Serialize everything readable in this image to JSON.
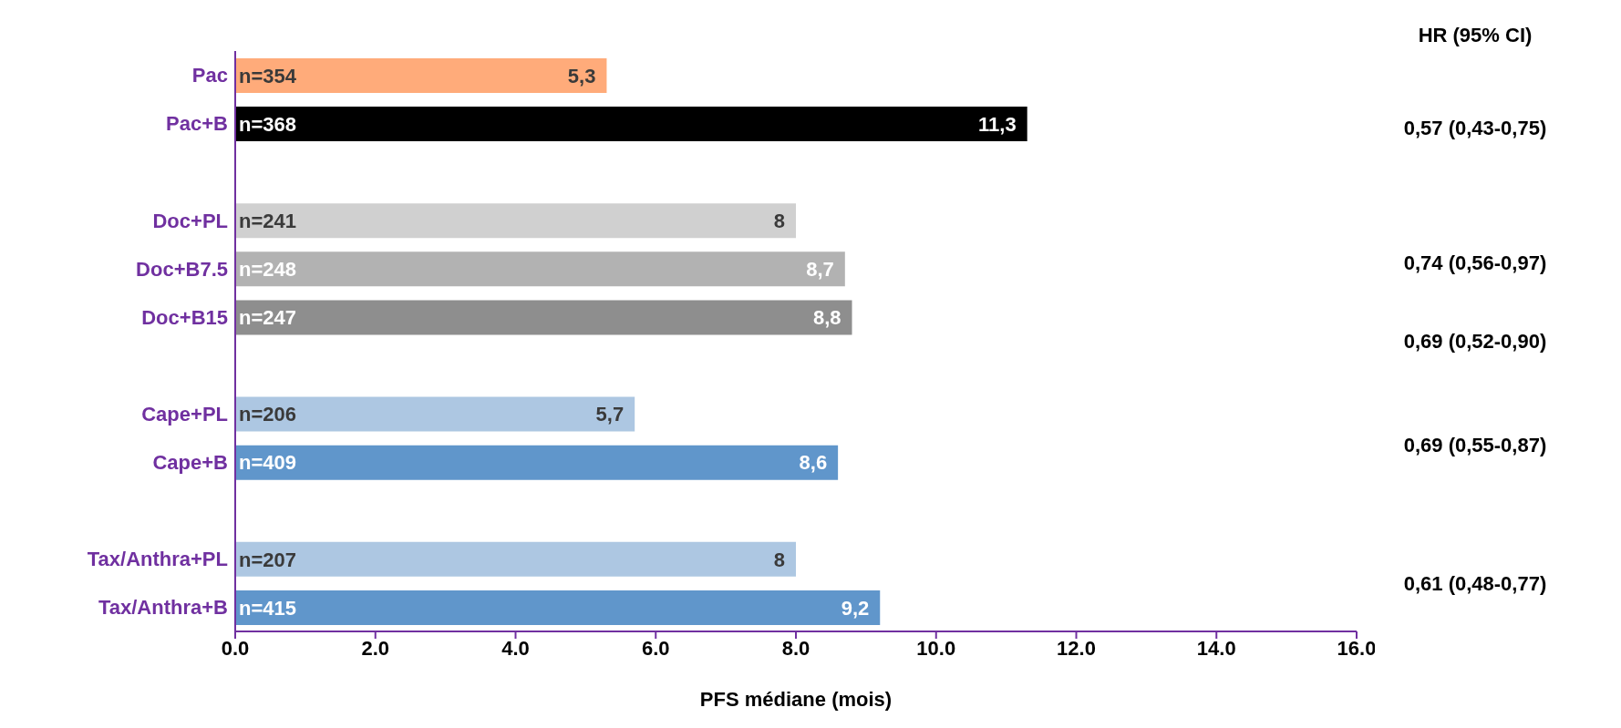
{
  "chart_data": {
    "type": "bar",
    "orientation": "horizontal",
    "xlabel": "PFS médiane (mois)",
    "categories": [
      "Pac",
      "Pac+B",
      null,
      "Doc+PL",
      "Doc+B7.5",
      "Doc+B15",
      null,
      "Cape+PL",
      "Cape+B",
      null,
      "Tax/Anthra+PL",
      "Tax/Anthra+B"
    ],
    "values": [
      5.3,
      11.3,
      null,
      8.0,
      8.7,
      8.8,
      null,
      5.7,
      8.6,
      null,
      8.0,
      9.2
    ],
    "value_labels": [
      "5,3",
      "11,3",
      null,
      "8",
      "8,7",
      "8,8",
      null,
      "5,7",
      "8,6",
      null,
      "8",
      "9,2"
    ],
    "colors": [
      "#ffab7a",
      "#000000",
      null,
      "#d0d0d0",
      "#b2b2b2",
      "#8e8e8e",
      null,
      "#adc7e2",
      "#6096cb",
      null,
      "#adc7e2",
      "#6096cb"
    ],
    "xlim": [
      0,
      16
    ],
    "xticks": [
      {
        "value": 0,
        "label": "0.0"
      },
      {
        "value": 2,
        "label": "2.0"
      },
      {
        "value": 4,
        "label": "4.0"
      },
      {
        "value": 6,
        "label": "6.0"
      },
      {
        "value": 8,
        "label": "8.0"
      },
      {
        "value": 10,
        "label": "10.0"
      },
      {
        "value": 12,
        "label": "12.0"
      },
      {
        "value": 14,
        "label": "14.0"
      },
      {
        "value": 16,
        "label": "16.0"
      }
    ],
    "annotations": [
      {
        "text": "n=354",
        "y": "Pac"
      },
      {
        "text": "n=368",
        "y": "Pac+B"
      },
      {
        "text": "n=241",
        "y": "Doc+PL"
      },
      {
        "text": "n=248",
        "y": "Doc+B7.5"
      },
      {
        "text": "n=247",
        "y": "Doc+B15"
      },
      {
        "text": "n=206",
        "y": "Cape+PL"
      },
      {
        "text": "n=409",
        "y": "Cape+B"
      },
      {
        "text": "n=207",
        "y": "Tax/Anthra+PL"
      },
      {
        "text": "n=415",
        "y": "Tax/Anthra+B"
      },
      "HR (95% CI)",
      "0,57 (0,43-0,75)",
      "0,74 (0,56-0,97)",
      "0,69 (0,52-0,90)",
      "0,69 (0,55-0,87)",
      "0,61 (0,48-0,77)"
    ],
    "grid": false,
    "legend": false
  }
}
